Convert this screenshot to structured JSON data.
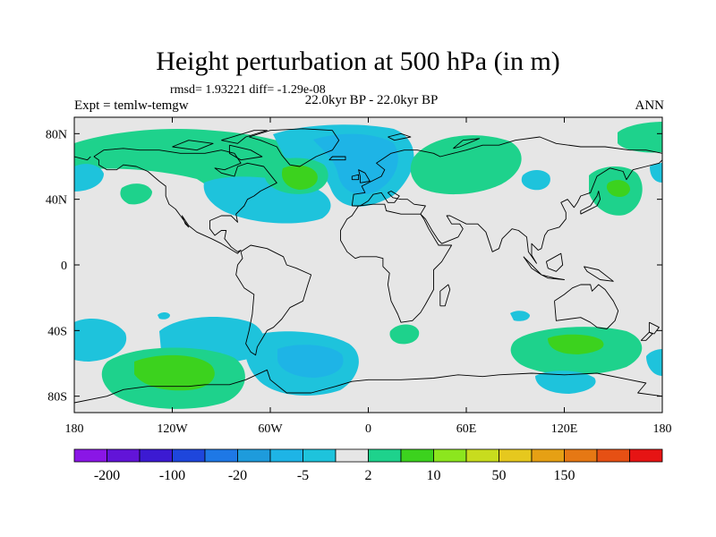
{
  "title": "Height perturbation at 500 hPa (in m)",
  "stats": "rmsd= 1.93221 diff= -1.29e-08",
  "left_label": "Expt = temlw-temgw",
  "center_label": "22.0kyr BP - 22.0kyr BP",
  "right_label": "ANN",
  "map": {
    "projection": "cylindrical-equidistant",
    "lon_range": [
      -180,
      180
    ],
    "lat_range": [
      -90,
      90
    ],
    "x_ticks": [
      {
        "lon": -180,
        "label": "180"
      },
      {
        "lon": -120,
        "label": "120W"
      },
      {
        "lon": -60,
        "label": "60W"
      },
      {
        "lon": 0,
        "label": "0"
      },
      {
        "lon": 60,
        "label": "60E"
      },
      {
        "lon": 120,
        "label": "120E"
      },
      {
        "lon": 180,
        "label": "180"
      }
    ],
    "y_ticks": [
      {
        "lat": 80,
        "label": "80N"
      },
      {
        "lat": 40,
        "label": "40N"
      },
      {
        "lat": 0,
        "label": "0"
      },
      {
        "lat": -40,
        "label": "40S"
      },
      {
        "lat": -80,
        "label": "80S"
      }
    ],
    "background_color": "#e6e6e6",
    "coastline_color": "#000000"
  },
  "colorbar": {
    "colors": [
      "#8a16e6",
      "#6214d8",
      "#3c1ad2",
      "#1e46dc",
      "#1e78e6",
      "#1e9bdc",
      "#1eb4e6",
      "#1ec3dc",
      "#e6e6e6",
      "#1ed28c",
      "#3cd21e",
      "#8ce61e",
      "#c8dc1e",
      "#e6c81e",
      "#e6a014",
      "#e67814",
      "#e65014",
      "#e61414"
    ],
    "labels": [
      {
        "after_box": 1,
        "text": "-200"
      },
      {
        "after_box": 3,
        "text": "-100"
      },
      {
        "after_box": 5,
        "text": "-20"
      },
      {
        "after_box": 7,
        "text": "-5"
      },
      {
        "after_box": 9,
        "text": "2"
      },
      {
        "after_box": 11,
        "text": "10"
      },
      {
        "after_box": 13,
        "text": "50"
      },
      {
        "after_box": 15,
        "text": "150"
      }
    ]
  }
}
